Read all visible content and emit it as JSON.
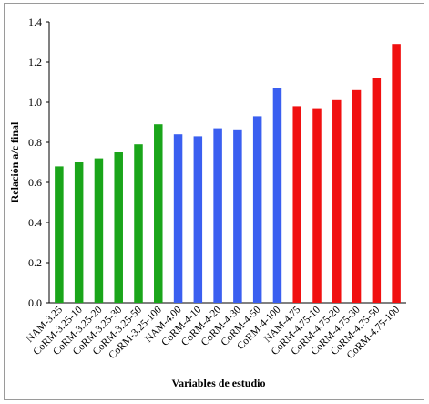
{
  "chart_data": {
    "type": "bar",
    "title": "",
    "xlabel": "Variables  de estudio",
    "ylabel": "Relación a/c final",
    "ylim": [
      0,
      1.4
    ],
    "yticks": [
      "0.0",
      "0.2",
      "0.4",
      "0.6",
      "0.8",
      "1.0",
      "1.2",
      "1.4"
    ],
    "grid": false,
    "colors": {
      "green": "#1aa51a",
      "blue": "#3a5ff0",
      "red": "#f01010"
    },
    "categories": [
      "NAM-3.25",
      "CoRM-3.25-10",
      "CoRM-3.25-20",
      "CoRM-3.25-30",
      "CoRM-3.25-50",
      "CoRM-3.25-100",
      "NAM-4.00",
      "CoRM-4-10",
      "CoRM-4-20",
      "CoRM-4-30",
      "CoRM-4-50",
      "CoRM-4-100",
      "NAM-4.75",
      "CoRM-4.75-10",
      "CoRM-4.75-20",
      "CoRM-4.75-30",
      "CoRM-4.75-50",
      "CoRM-4.75-100"
    ],
    "values": [
      0.68,
      0.7,
      0.72,
      0.75,
      0.79,
      0.89,
      0.84,
      0.83,
      0.87,
      0.86,
      0.93,
      1.07,
      0.98,
      0.97,
      1.01,
      1.06,
      1.12,
      1.29
    ],
    "bar_colors": [
      "green",
      "green",
      "green",
      "green",
      "green",
      "green",
      "blue",
      "blue",
      "blue",
      "blue",
      "blue",
      "blue",
      "red",
      "red",
      "red",
      "red",
      "red",
      "red"
    ]
  }
}
